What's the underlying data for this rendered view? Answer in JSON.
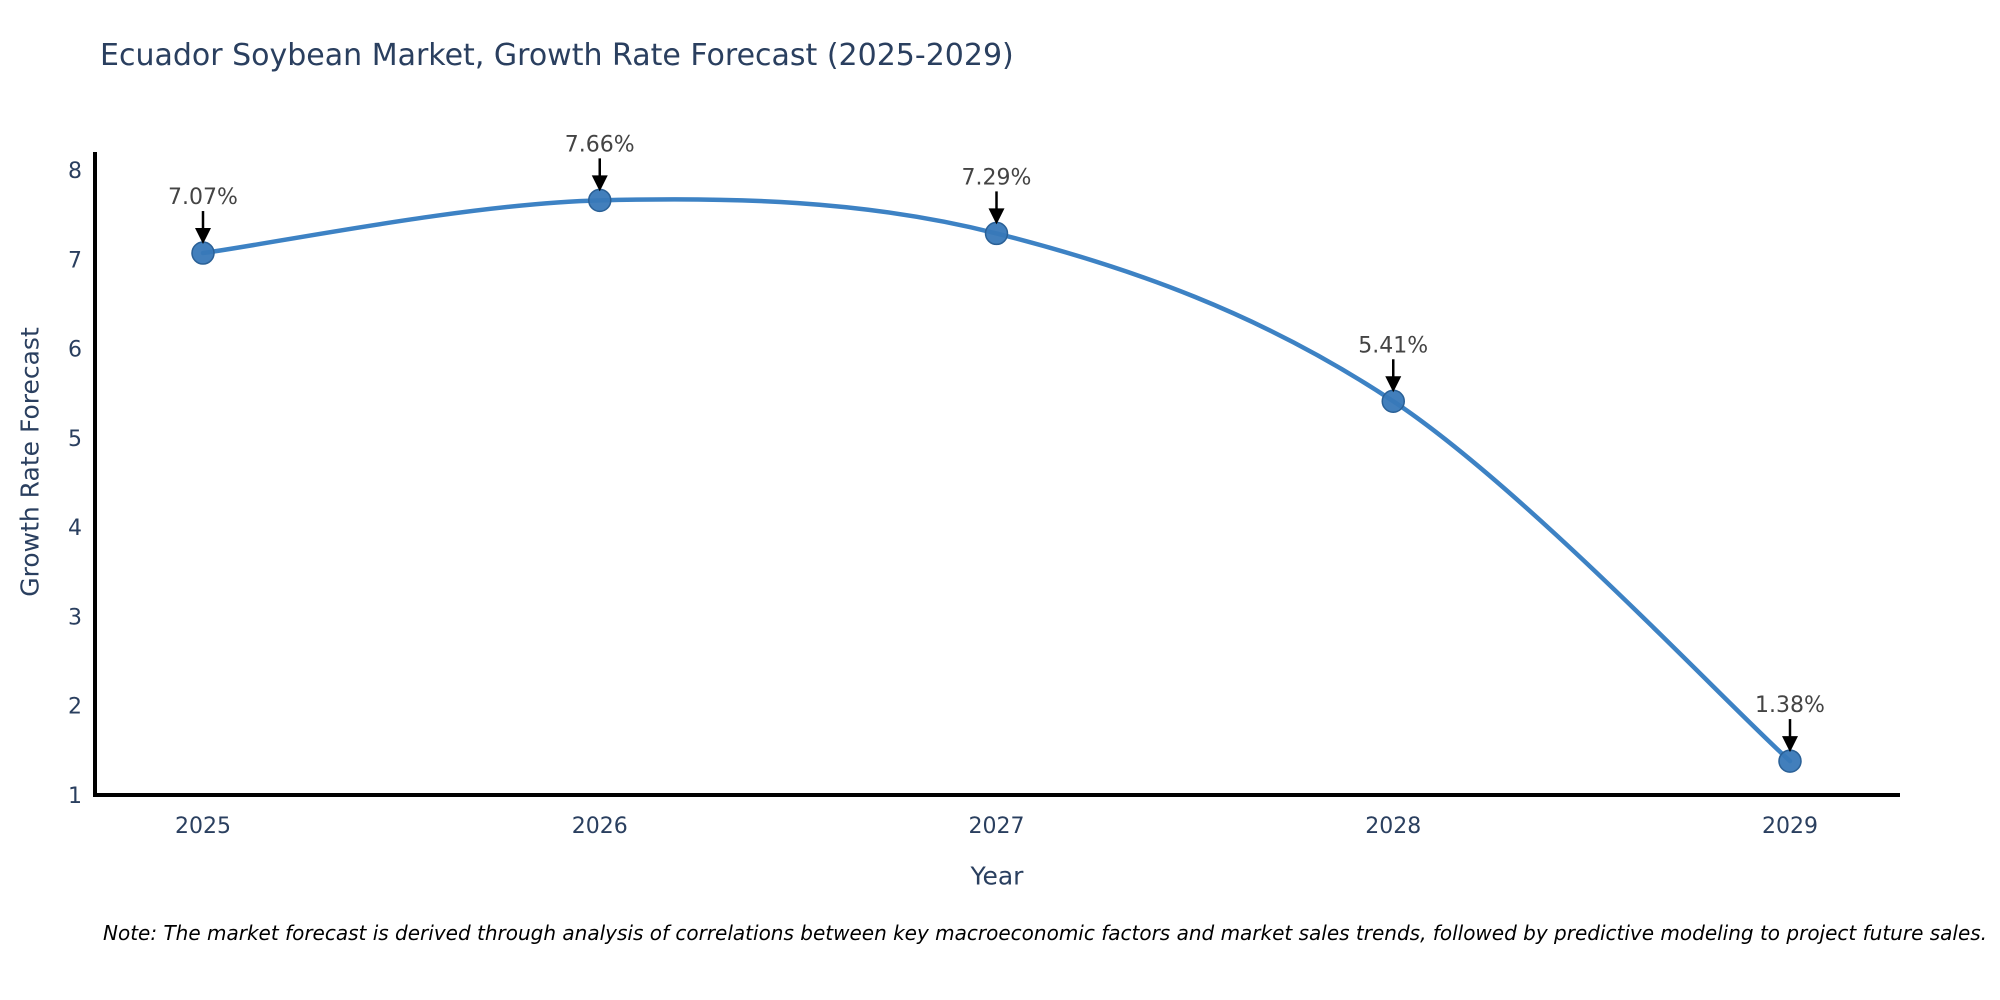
{
  "chart_data": {
    "type": "line",
    "title": "Ecuador Soybean Market, Growth Rate Forecast (2025-2029)",
    "xlabel": "Year",
    "ylabel": "Growth Rate Forecast",
    "categories": [
      "2025",
      "2026",
      "2027",
      "2028",
      "2029"
    ],
    "values": [
      7.07,
      7.66,
      7.29,
      5.41,
      1.38
    ],
    "point_labels": [
      "7.07%",
      "7.66%",
      "7.29%",
      "5.41%",
      "1.38%"
    ],
    "yticks": [
      1,
      2,
      3,
      4,
      5,
      6,
      7,
      8
    ],
    "ylim": [
      1,
      8
    ],
    "line_shape": "spline",
    "grid": false,
    "legend": "none",
    "note": "Note: The market forecast is derived through analysis of correlations between key macroeconomic factors and market sales trends, followed by predictive modeling to project future sales.",
    "colors": {
      "line": "#3d82c4",
      "marker_fill": "#3878b8",
      "marker_edge": "#2a6096",
      "axis_line": "#000000",
      "arrow": "#000000",
      "title_text": "#2a3f5f",
      "tick_text": "#2a3f5f",
      "annotation_text": "#444444",
      "note_text": "#000000"
    }
  }
}
